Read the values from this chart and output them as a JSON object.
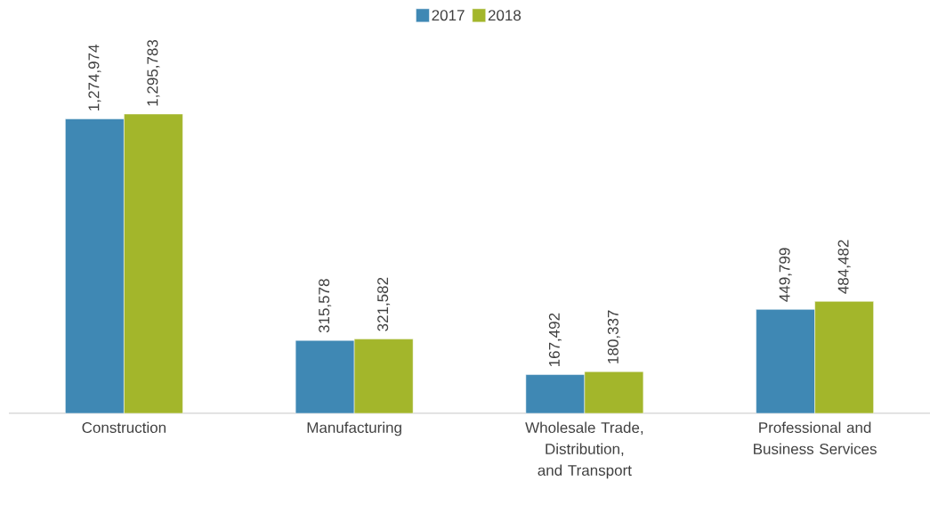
{
  "chart_data": {
    "type": "bar",
    "categories": [
      "Construction",
      "Manufacturing",
      "Wholesale Trade, Distribution, and Transport",
      "Professional and Business Services"
    ],
    "series": [
      {
        "name": "2017",
        "color": "#3f88b4",
        "values": [
          1274974,
          315578,
          167492,
          449799
        ],
        "value_labels": [
          "1,274,974",
          "315,578",
          "167,492",
          "449,799"
        ]
      },
      {
        "name": "2018",
        "color": "#a3b62b",
        "values": [
          1295783,
          321582,
          180337,
          484482
        ],
        "value_labels": [
          "1,295,783",
          "321,582",
          "180,337",
          "484,482"
        ]
      }
    ],
    "legend": "top"
  }
}
